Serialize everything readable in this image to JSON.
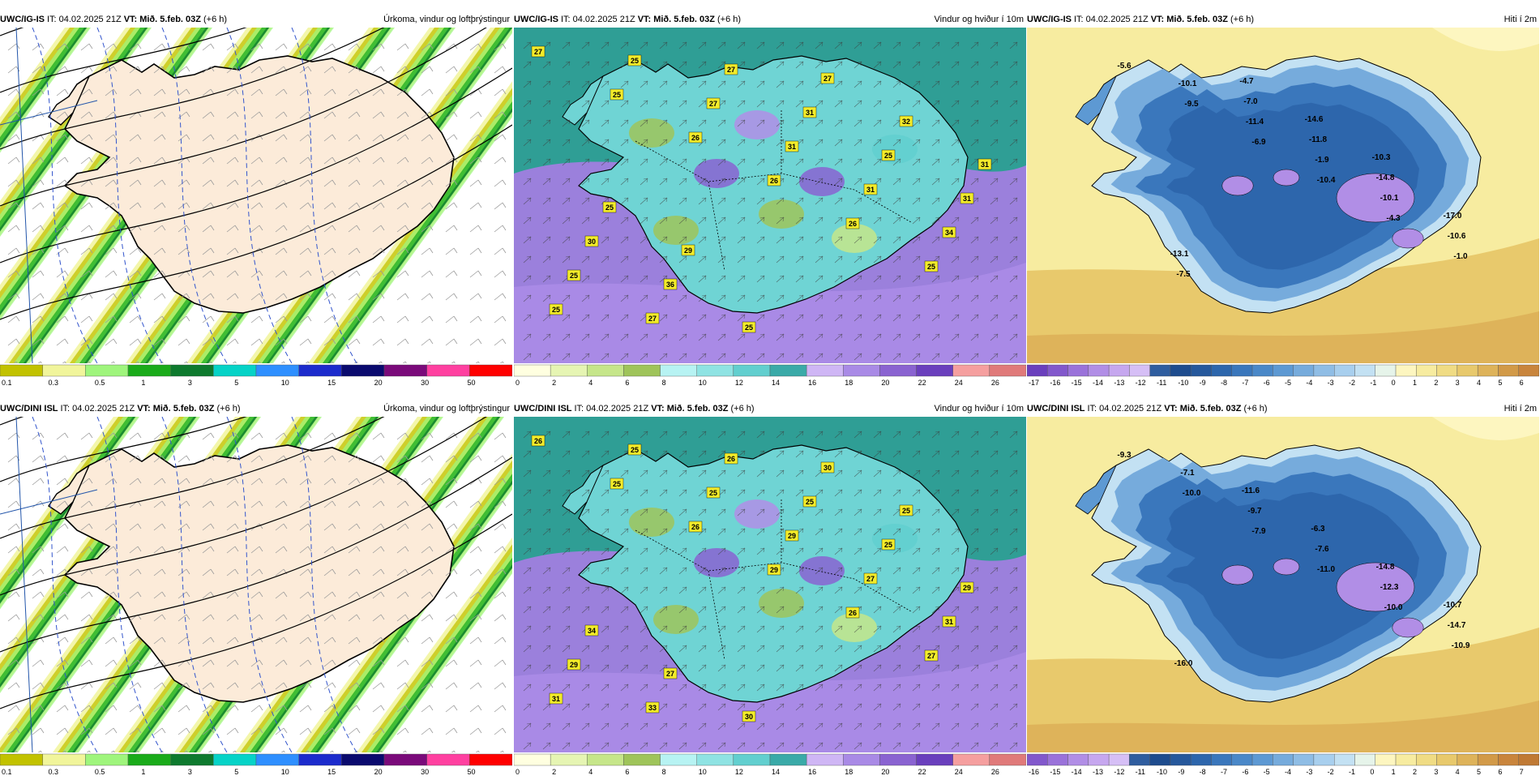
{
  "common": {
    "it_prefix": "IT:",
    "it_value": "04.02.2025 21Z",
    "vt_prefix": "VT:",
    "vt_value": "Mið. 5.feb. 03Z",
    "lead": "(+6 h)"
  },
  "panels": [
    {
      "id": "p1",
      "model": "UWC/IG-IS",
      "title": "Úrkoma, vindur og loftþrýstingur",
      "kind": "precip",
      "legend": {
        "labels": [
          "0.1",
          "0.3",
          "0.5",
          "1",
          "3",
          "5",
          "10",
          "15",
          "20",
          "30",
          "50"
        ],
        "colors": [
          "#c2c200",
          "#f1f59b",
          "#9ff57c",
          "#1aab1a",
          "#0e7a2e",
          "#06d3c7",
          "#2e8fff",
          "#1c2bcc",
          "#0a0a6e",
          "#7a0a7a",
          "#ff40a0",
          "#ff0000"
        ]
      }
    },
    {
      "id": "p2",
      "model": "UWC/IG-IS",
      "title": "Vindur og hviður í 10m",
      "kind": "wind",
      "labels": [
        "27",
        "25",
        "26",
        "26",
        "26",
        "25",
        "25",
        "25",
        "27",
        "31",
        "31",
        "34",
        "25",
        "27",
        "27",
        "31",
        "25",
        "31",
        "30",
        "36",
        "25",
        "27",
        "32",
        "31",
        "25",
        "29"
      ],
      "legend": {
        "labels": [
          "0",
          "2",
          "4",
          "6",
          "8",
          "10",
          "12",
          "14",
          "16",
          "18",
          "20",
          "22",
          "24",
          "26"
        ],
        "colors": [
          "#ffffe0",
          "#e6f5b3",
          "#c6e68a",
          "#9fc45a",
          "#b7f3f3",
          "#8fe3e3",
          "#62cfcf",
          "#3aaaa8",
          "#cfb6f5",
          "#a98ae6",
          "#8a63d1",
          "#6a3fbd",
          "#f59f9f",
          "#e07a7a"
        ]
      }
    },
    {
      "id": "p3",
      "model": "UWC/IG-IS",
      "title": "Hiti í 2m",
      "kind": "temp",
      "temps": [
        "-5.6",
        "-9.5",
        "-6.9",
        "-10.4",
        "-4.3",
        "-1.0",
        "-10.1",
        "-11.4",
        "-1.9",
        "-10.1",
        "-10.6",
        "-7.5",
        "-7.0",
        "-11.8",
        "-14.8",
        "-17.0",
        "-13.1",
        "-4.7",
        "-14.6",
        "-10.3"
      ],
      "legend": {
        "labels": [
          "-17",
          "-16",
          "-15",
          "-14",
          "-13",
          "-12",
          "-11",
          "-10",
          "-9",
          "-8",
          "-7",
          "-6",
          "-5",
          "-4",
          "-3",
          "-2",
          "-1",
          "0",
          "1",
          "2",
          "3",
          "4",
          "5",
          "6"
        ],
        "colors": [
          "#6a3fbd",
          "#8258cc",
          "#9a72da",
          "#b18ee6",
          "#c6a7ef",
          "#d6bff6",
          "#2f5d9f",
          "#1e4c8e",
          "#26589c",
          "#2d66ac",
          "#3a77bc",
          "#4a88c8",
          "#5d99d3",
          "#76abdc",
          "#8fbde5",
          "#a8cfee",
          "#c3e1f3",
          "#e6f4ea",
          "#fdf6c0",
          "#f7eca0",
          "#f0dc84",
          "#e8c96c",
          "#deb35a",
          "#d29a48",
          "#c9853c"
        ]
      }
    },
    {
      "id": "p4",
      "model": "UWC/DINI ISL",
      "title": "Úrkoma, vindur og loftþrýstingur",
      "kind": "precip",
      "legend": {
        "labels": [
          "0.1",
          "0.3",
          "0.5",
          "1",
          "3",
          "5",
          "10",
          "15",
          "20",
          "30",
          "50"
        ],
        "colors": [
          "#c2c200",
          "#f1f59b",
          "#9ff57c",
          "#1aab1a",
          "#0e7a2e",
          "#06d3c7",
          "#2e8fff",
          "#1c2bcc",
          "#0a0a6e",
          "#7a0a7a",
          "#ff40a0",
          "#ff0000"
        ]
      }
    },
    {
      "id": "p5",
      "model": "UWC/DINI ISL",
      "title": "Vindur og hviður í 10m",
      "kind": "wind",
      "labels": [
        "26",
        "25",
        "26",
        "29",
        "26",
        "27",
        "31",
        "25",
        "25",
        "29",
        "27",
        "31",
        "29",
        "33",
        "26",
        "25",
        "25",
        "29",
        "34",
        "27",
        "30",
        "30",
        "25"
      ],
      "legend": {
        "labels": [
          "0",
          "2",
          "4",
          "6",
          "8",
          "10",
          "12",
          "14",
          "16",
          "18",
          "20",
          "22",
          "24",
          "26"
        ],
        "colors": [
          "#ffffe0",
          "#e6f5b3",
          "#c6e68a",
          "#9fc45a",
          "#b7f3f3",
          "#8fe3e3",
          "#62cfcf",
          "#3aaaa8",
          "#cfb6f5",
          "#a98ae6",
          "#8a63d1",
          "#6a3fbd",
          "#f59f9f",
          "#e07a7a"
        ]
      }
    },
    {
      "id": "p6",
      "model": "UWC/DINI ISL",
      "title": "Hiti í 2m",
      "kind": "temp",
      "temps": [
        "-9.3",
        "-10.0",
        "-7.9",
        "-11.0",
        "-10.0",
        "-10.9",
        "-7.1",
        "-9.7",
        "-7.6",
        "-12.3",
        "-14.7",
        "-16.0",
        "-11.6",
        "-6.3",
        "-14.8",
        "-10.7"
      ],
      "legend": {
        "labels": [
          "-16",
          "-15",
          "-14",
          "-13",
          "-12",
          "-11",
          "-10",
          "-9",
          "-8",
          "-7",
          "-6",
          "-5",
          "-4",
          "-3",
          "-2",
          "-1",
          "0",
          "1",
          "2",
          "3",
          "4",
          "5",
          "6",
          "7"
        ],
        "colors": [
          "#8258cc",
          "#9a72da",
          "#b18ee6",
          "#c6a7ef",
          "#d6bff6",
          "#2f5d9f",
          "#1e4c8e",
          "#26589c",
          "#2d66ac",
          "#3a77bc",
          "#4a88c8",
          "#5d99d3",
          "#76abdc",
          "#8fbde5",
          "#a8cfee",
          "#c3e1f3",
          "#e6f4ea",
          "#fdf6c0",
          "#f7eca0",
          "#f0dc84",
          "#e8c96c",
          "#deb35a",
          "#d29a48",
          "#c9853c",
          "#c07a34"
        ]
      }
    }
  ]
}
